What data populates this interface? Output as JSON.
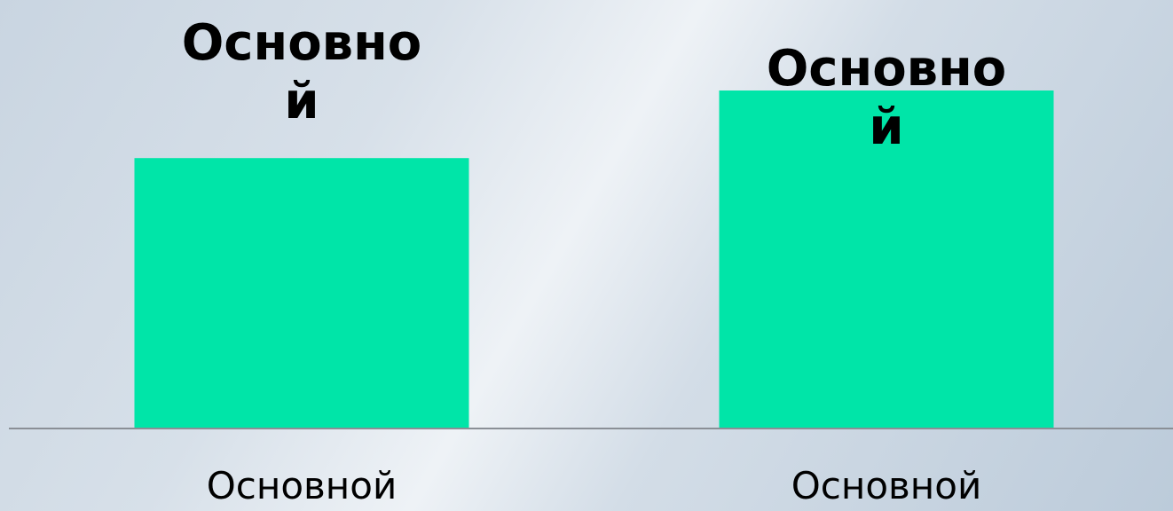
{
  "chart_data": {
    "type": "bar",
    "categories": [
      "Основной",
      "Основной"
    ],
    "values": [
      80,
      100
    ],
    "value_labels": [
      "Основной",
      "Основной"
    ],
    "color": "#00e5a8"
  }
}
